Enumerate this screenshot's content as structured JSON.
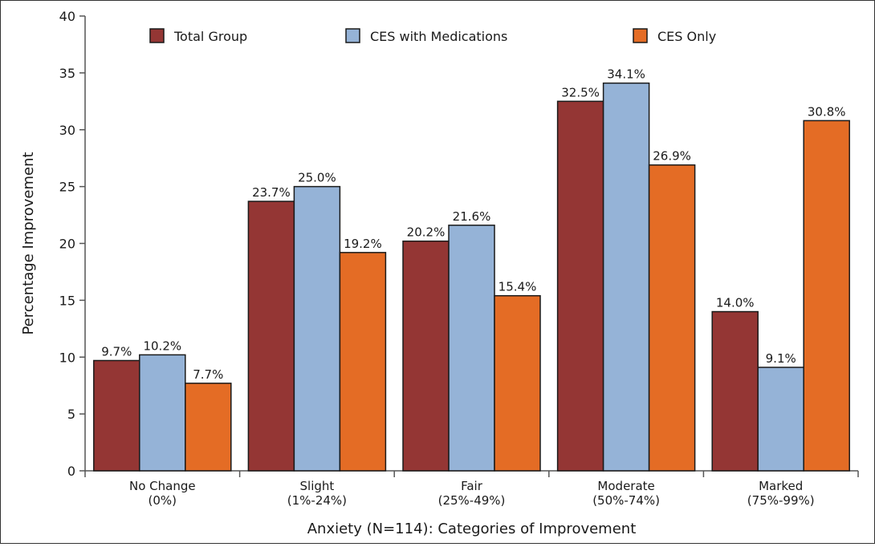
{
  "chart_data": {
    "type": "bar",
    "categories": [
      [
        "No Change",
        "(0%)"
      ],
      [
        "Slight",
        "(1%-24%)"
      ],
      [
        "Fair",
        "(25%-49%)"
      ],
      [
        "Moderate",
        "(50%-74%)"
      ],
      [
        "Marked",
        "(75%-99%)"
      ]
    ],
    "series": [
      {
        "name": "Total Group",
        "color": "#943634",
        "values": [
          9.7,
          23.7,
          20.2,
          32.5,
          14.0
        ],
        "labels": [
          "9.7%",
          "23.7%",
          "20.2%",
          "32.5%",
          "14.0%"
        ]
      },
      {
        "name": "CES with Medications",
        "color": "#95b3d7",
        "values": [
          10.2,
          25.0,
          21.6,
          34.1,
          9.1
        ],
        "labels": [
          "10.2%",
          "25.0%",
          "21.6%",
          "34.1%",
          "9.1%"
        ]
      },
      {
        "name": "CES Only",
        "color": "#e46c25",
        "values": [
          7.7,
          19.2,
          15.4,
          26.9,
          30.8
        ],
        "labels": [
          "7.7%",
          "19.2%",
          "15.4%",
          "26.9%",
          "30.8%"
        ]
      }
    ],
    "xlabel": "Anxiety (N=114): Categories of Improvement",
    "ylabel": "Percentage Improvement",
    "ylim": [
      0,
      40
    ],
    "yticks": [
      "0",
      "5",
      "10",
      "15",
      "20",
      "25",
      "30",
      "35",
      "40"
    ],
    "grid": false,
    "legend": "top"
  }
}
